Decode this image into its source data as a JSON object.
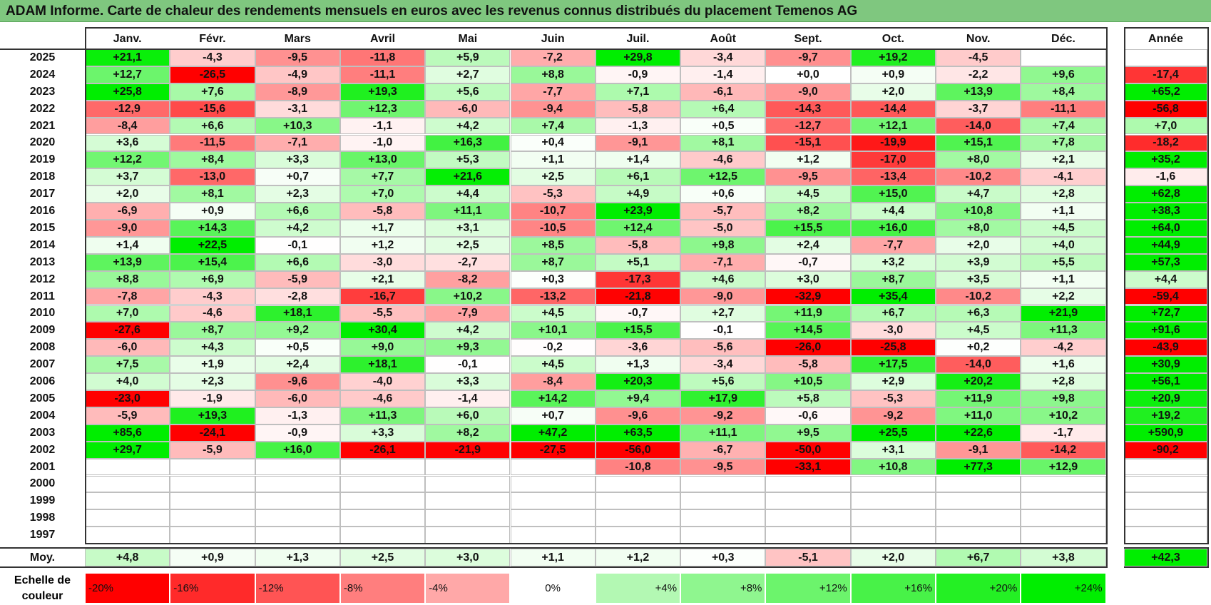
{
  "title": "ADAM Informe. Carte de chaleur des rendements mensuels en euros avec les revenus connus distribués du placement Temenos AG",
  "chart_data": {
    "type": "heatmap",
    "title": "ADAM Informe. Carte de chaleur des rendements mensuels en euros avec les revenus connus distribués du placement Temenos AG",
    "months": [
      "Janv.",
      "Févr.",
      "Mars",
      "Avril",
      "Mai",
      "Juin",
      "Juil.",
      "Août",
      "Sept.",
      "Oct.",
      "Nov.",
      "Déc."
    ],
    "year_header": "Année",
    "rows": [
      {
        "year": "2025",
        "values": [
          "+21,1",
          "-4,3",
          "-9,5",
          "-11,8",
          "+5,9",
          "-7,2",
          "+29,8",
          "-3,4",
          "-9,7",
          "+19,2",
          "-4,5",
          ""
        ],
        "annual": ""
      },
      {
        "year": "2024",
        "values": [
          "+12,7",
          "-26,5",
          "-4,9",
          "-11,1",
          "+2,7",
          "+8,8",
          "-0,9",
          "-1,4",
          "+0,0",
          "+0,9",
          "-2,2",
          "+9,6"
        ],
        "annual": "-17,4"
      },
      {
        "year": "2023",
        "values": [
          "+25,8",
          "+7,6",
          "-8,9",
          "+19,3",
          "+5,6",
          "-7,7",
          "+7,1",
          "-6,1",
          "-9,0",
          "+2,0",
          "+13,9",
          "+8,4"
        ],
        "annual": "+65,2"
      },
      {
        "year": "2022",
        "values": [
          "-12,9",
          "-15,6",
          "-3,1",
          "+12,3",
          "-6,0",
          "-9,4",
          "-5,8",
          "+6,4",
          "-14,3",
          "-14,4",
          "-3,7",
          "-11,1"
        ],
        "annual": "-56,8"
      },
      {
        "year": "2021",
        "values": [
          "-8,4",
          "+6,6",
          "+10,3",
          "-1,1",
          "+4,2",
          "+7,4",
          "-1,3",
          "+0,5",
          "-12,7",
          "+12,1",
          "-14,0",
          "+7,4"
        ],
        "annual": "+7,0"
      },
      {
        "year": "2020",
        "values": [
          "+3,6",
          "-11,5",
          "-7,1",
          "-1,0",
          "+16,3",
          "+0,4",
          "-9,1",
          "+8,1",
          "-15,1",
          "-19,9",
          "+15,1",
          "+7,8"
        ],
        "annual": "-18,2"
      },
      {
        "year": "2019",
        "values": [
          "+12,2",
          "+8,4",
          "+3,3",
          "+13,0",
          "+5,3",
          "+1,1",
          "+1,4",
          "-4,6",
          "+1,2",
          "-17,0",
          "+8,0",
          "+2,1"
        ],
        "annual": "+35,2"
      },
      {
        "year": "2018",
        "values": [
          "+3,7",
          "-13,0",
          "+0,7",
          "+7,7",
          "+21,6",
          "+2,5",
          "+6,1",
          "+12,5",
          "-9,5",
          "-13,4",
          "-10,2",
          "-4,1"
        ],
        "annual": "-1,6"
      },
      {
        "year": "2017",
        "values": [
          "+2,0",
          "+8,1",
          "+2,3",
          "+7,0",
          "+4,4",
          "-5,3",
          "+4,9",
          "+0,6",
          "+4,5",
          "+15,0",
          "+4,7",
          "+2,8"
        ],
        "annual": "+62,8"
      },
      {
        "year": "2016",
        "values": [
          "-6,9",
          "+0,9",
          "+6,6",
          "-5,8",
          "+11,1",
          "-10,7",
          "+23,9",
          "-5,7",
          "+8,2",
          "+4,4",
          "+10,8",
          "+1,1"
        ],
        "annual": "+38,3"
      },
      {
        "year": "2015",
        "values": [
          "-9,0",
          "+14,3",
          "+4,2",
          "+1,7",
          "+3,1",
          "-10,5",
          "+12,4",
          "-5,0",
          "+15,5",
          "+16,0",
          "+8,0",
          "+4,5"
        ],
        "annual": "+64,0"
      },
      {
        "year": "2014",
        "values": [
          "+1,4",
          "+22,5",
          "-0,1",
          "+1,2",
          "+2,5",
          "+8,5",
          "-5,8",
          "+9,8",
          "+2,4",
          "-7,7",
          "+2,0",
          "+4,0"
        ],
        "annual": "+44,9"
      },
      {
        "year": "2013",
        "values": [
          "+13,9",
          "+15,4",
          "+6,6",
          "-3,0",
          "-2,7",
          "+8,7",
          "+5,1",
          "-7,1",
          "-0,7",
          "+3,2",
          "+3,9",
          "+5,5"
        ],
        "annual": "+57,3"
      },
      {
        "year": "2012",
        "values": [
          "+8,8",
          "+6,9",
          "-5,9",
          "+2,1",
          "-8,2",
          "+0,3",
          "-17,3",
          "+4,6",
          "+3,0",
          "+8,7",
          "+3,5",
          "+1,1"
        ],
        "annual": "+4,4"
      },
      {
        "year": "2011",
        "values": [
          "-7,8",
          "-4,3",
          "-2,8",
          "-16,7",
          "+10,2",
          "-13,2",
          "-21,8",
          "-9,0",
          "-32,9",
          "+35,4",
          "-10,2",
          "+2,2"
        ],
        "annual": "-59,4"
      },
      {
        "year": "2010",
        "values": [
          "+7,0",
          "-4,6",
          "+18,1",
          "-5,5",
          "-7,9",
          "+4,5",
          "-0,7",
          "+2,7",
          "+11,9",
          "+6,7",
          "+6,3",
          "+21,9"
        ],
        "annual": "+72,7"
      },
      {
        "year": "2009",
        "values": [
          "-27,6",
          "+8,7",
          "+9,2",
          "+30,4",
          "+4,2",
          "+10,1",
          "+15,5",
          "-0,1",
          "+14,5",
          "-3,0",
          "+4,5",
          "+11,3"
        ],
        "annual": "+91,6"
      },
      {
        "year": "2008",
        "values": [
          "-6,0",
          "+4,3",
          "+0,5",
          "+9,0",
          "+9,3",
          "-0,2",
          "-3,6",
          "-5,6",
          "-26,0",
          "-25,8",
          "+0,2",
          "-4,2"
        ],
        "annual": "-43,9"
      },
      {
        "year": "2007",
        "values": [
          "+7,5",
          "+1,9",
          "+2,4",
          "+18,1",
          "-0,1",
          "+4,5",
          "+1,3",
          "-3,4",
          "-5,8",
          "+17,5",
          "-14,0",
          "+1,6"
        ],
        "annual": "+30,9"
      },
      {
        "year": "2006",
        "values": [
          "+4,0",
          "+2,3",
          "-9,6",
          "-4,0",
          "+3,3",
          "-8,4",
          "+20,3",
          "+5,6",
          "+10,5",
          "+2,9",
          "+20,2",
          "+2,8"
        ],
        "annual": "+56,1"
      },
      {
        "year": "2005",
        "values": [
          "-23,0",
          "-1,9",
          "-6,0",
          "-4,6",
          "-1,4",
          "+14,2",
          "+9,4",
          "+17,9",
          "+5,8",
          "-5,3",
          "+11,9",
          "+9,8"
        ],
        "annual": "+20,9"
      },
      {
        "year": "2004",
        "values": [
          "-5,9",
          "+19,3",
          "-1,3",
          "+11,3",
          "+6,0",
          "+0,7",
          "-9,6",
          "-9,2",
          "-0,6",
          "-9,2",
          "+11,0",
          "+10,2"
        ],
        "annual": "+19,2"
      },
      {
        "year": "2003",
        "values": [
          "+85,6",
          "-24,1",
          "-0,9",
          "+3,3",
          "+8,2",
          "+47,2",
          "+63,5",
          "+11,1",
          "+9,5",
          "+25,5",
          "+22,6",
          "-1,7"
        ],
        "annual": "+590,9"
      },
      {
        "year": "2002",
        "values": [
          "+29,7",
          "-5,9",
          "+16,0",
          "-26,1",
          "-21,9",
          "-27,5",
          "-56,0",
          "-6,7",
          "-50,0",
          "+3,1",
          "-9,1",
          "-14,2"
        ],
        "annual": "-90,2"
      },
      {
        "year": "2001",
        "values": [
          "",
          "",
          "",
          "",
          "",
          "",
          "-10,8",
          "-9,5",
          "-33,1",
          "+10,8",
          "+77,3",
          "+12,9"
        ],
        "annual": ""
      },
      {
        "year": "2000",
        "values": [
          "",
          "",
          "",
          "",
          "",
          "",
          "",
          "",
          "",
          "",
          "",
          ""
        ],
        "annual": ""
      },
      {
        "year": "1999",
        "values": [
          "",
          "",
          "",
          "",
          "",
          "",
          "",
          "",
          "",
          "",
          "",
          ""
        ],
        "annual": ""
      },
      {
        "year": "1998",
        "values": [
          "",
          "",
          "",
          "",
          "",
          "",
          "",
          "",
          "",
          "",
          "",
          ""
        ],
        "annual": ""
      },
      {
        "year": "1997",
        "values": [
          "",
          "",
          "",
          "",
          "",
          "",
          "",
          "",
          "",
          "",
          "",
          ""
        ],
        "annual": ""
      }
    ],
    "average": {
      "label": "Moy.",
      "values": [
        "+4,8",
        "+0,9",
        "+1,3",
        "+2,5",
        "+3,0",
        "+1,1",
        "+1,2",
        "+0,3",
        "-5,1",
        "+2,0",
        "+6,7",
        "+3,8"
      ],
      "annual": "+42,3"
    },
    "color_scale": {
      "label": "Echelle de couleur",
      "stops": [
        "-20%",
        "-16%",
        "-12%",
        "-8%",
        "-4%",
        "0%",
        "+4%",
        "+8%",
        "+12%",
        "+16%",
        "+20%",
        "+24%"
      ],
      "negative_color": "#ff0000",
      "positive_color": "#00ee00",
      "neutral_color": "#ffffff"
    }
  }
}
